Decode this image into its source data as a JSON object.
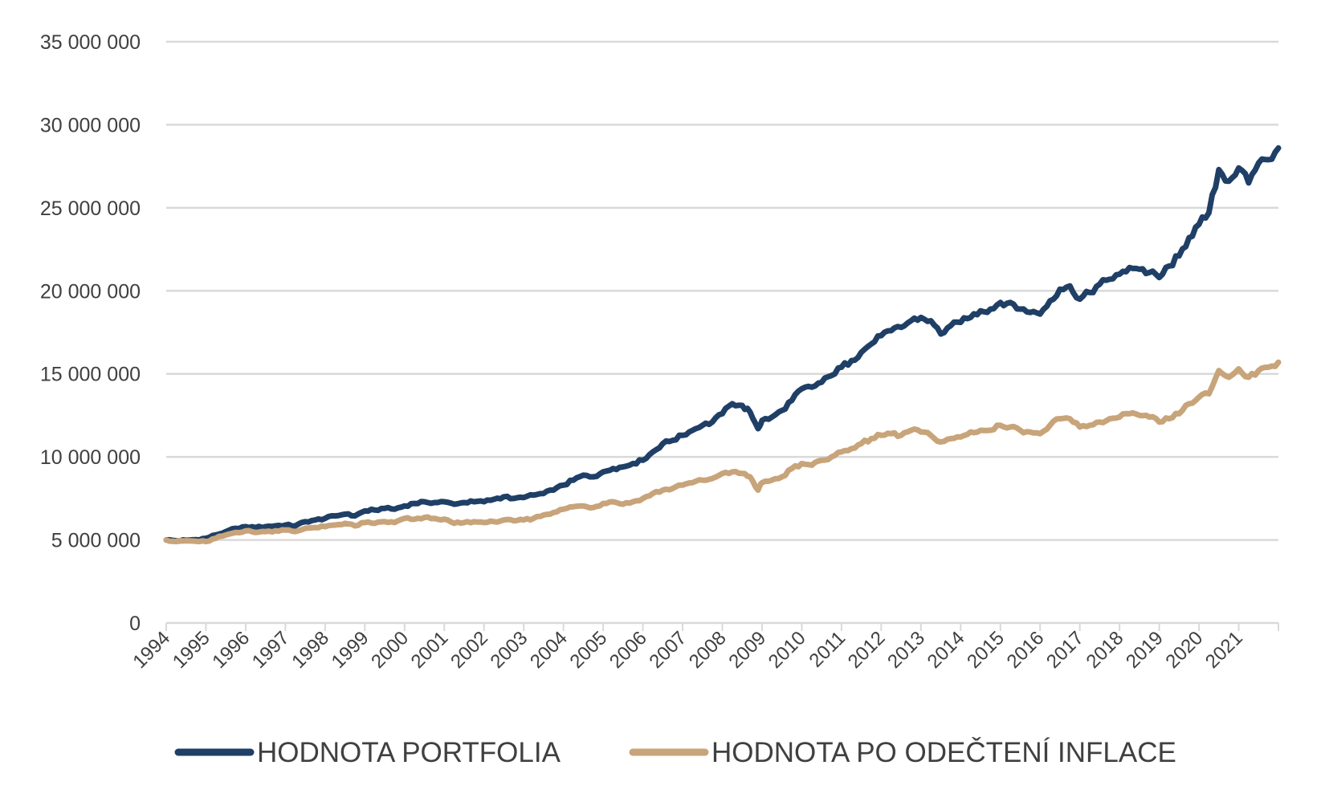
{
  "chart_data": {
    "type": "line",
    "title": "",
    "xlabel": "",
    "ylabel": "",
    "ylim": [
      0,
      35000000
    ],
    "y_ticks": [
      0,
      5000000,
      10000000,
      15000000,
      20000000,
      25000000,
      30000000,
      35000000
    ],
    "y_tick_labels": [
      "0",
      "5 000 000",
      "10 000 000",
      "15 000 000",
      "20 000 000",
      "25 000 000",
      "30 000 000",
      "35 000 000"
    ],
    "xlim": [
      1994,
      2022
    ],
    "x_tick_labels": [
      "1994",
      "1995",
      "1996",
      "1997",
      "1998",
      "1999",
      "2000",
      "2001",
      "2002",
      "2003",
      "2004",
      "2005",
      "2006",
      "2007",
      "2008",
      "2009",
      "2010",
      "2011",
      "2012",
      "2013",
      "2014",
      "2015",
      "2016",
      "2017",
      "2018",
      "2019",
      "2020",
      "2021"
    ],
    "grid": true,
    "legend_position": "bottom",
    "series": [
      {
        "name": "HODNOTA PORTFOLIA",
        "color": "#1f3f66",
        "x": [
          1994.0,
          1994.25,
          1994.5,
          1994.75,
          1995.0,
          1995.25,
          1995.5,
          1995.75,
          1996.0,
          1996.25,
          1996.5,
          1996.75,
          1997.0,
          1997.25,
          1997.5,
          1997.75,
          1998.0,
          1998.25,
          1998.5,
          1998.75,
          1999.0,
          1999.25,
          1999.5,
          1999.75,
          2000.0,
          2000.25,
          2000.5,
          2000.75,
          2001.0,
          2001.25,
          2001.5,
          2001.75,
          2002.0,
          2002.25,
          2002.5,
          2002.75,
          2003.0,
          2003.25,
          2003.5,
          2003.75,
          2004.0,
          2004.25,
          2004.5,
          2004.75,
          2005.0,
          2005.25,
          2005.5,
          2005.75,
          2006.0,
          2006.25,
          2006.5,
          2006.75,
          2007.0,
          2007.25,
          2007.5,
          2007.75,
          2008.0,
          2008.25,
          2008.5,
          2008.7,
          2008.9,
          2009.0,
          2009.25,
          2009.5,
          2009.75,
          2010.0,
          2010.25,
          2010.5,
          2010.75,
          2011.0,
          2011.25,
          2011.5,
          2011.75,
          2012.0,
          2012.25,
          2012.5,
          2012.75,
          2013.0,
          2013.25,
          2013.5,
          2013.75,
          2014.0,
          2014.25,
          2014.5,
          2014.75,
          2015.0,
          2015.25,
          2015.5,
          2015.75,
          2016.0,
          2016.25,
          2016.5,
          2016.75,
          2017.0,
          2017.25,
          2017.5,
          2017.75,
          2018.0,
          2018.25,
          2018.5,
          2018.75,
          2019.0,
          2019.25,
          2019.5,
          2019.75,
          2020.0,
          2020.25,
          2020.5,
          2020.75,
          2021.0,
          2021.25,
          2021.5,
          2021.75,
          2022.0
        ],
        "values": [
          5000000,
          4950000,
          4980000,
          5020000,
          5100000,
          5300000,
          5500000,
          5700000,
          5800000,
          5750000,
          5800000,
          5850000,
          5900000,
          5850000,
          6100000,
          6200000,
          6300000,
          6450000,
          6550000,
          6450000,
          6750000,
          6800000,
          6900000,
          6850000,
          7050000,
          7200000,
          7300000,
          7250000,
          7300000,
          7150000,
          7250000,
          7300000,
          7300000,
          7450000,
          7600000,
          7500000,
          7550000,
          7700000,
          7800000,
          8000000,
          8300000,
          8600000,
          8900000,
          8800000,
          9100000,
          9300000,
          9400000,
          9600000,
          9800000,
          10300000,
          10800000,
          11000000,
          11300000,
          11600000,
          11900000,
          12100000,
          12600000,
          13200000,
          13100000,
          12700000,
          11700000,
          12200000,
          12400000,
          12800000,
          13400000,
          14100000,
          14200000,
          14500000,
          14900000,
          15400000,
          15800000,
          16300000,
          16800000,
          17300000,
          17600000,
          17800000,
          18200000,
          18400000,
          18200000,
          17400000,
          17900000,
          18100000,
          18400000,
          18800000,
          18900000,
          19300000,
          19300000,
          18900000,
          18700000,
          18600000,
          19400000,
          20100000,
          20300000,
          19500000,
          19900000,
          20400000,
          20700000,
          21000000,
          21400000,
          21300000,
          21100000,
          20800000,
          21500000,
          22100000,
          23200000,
          24000000,
          24700000,
          27300000,
          26600000,
          27400000,
          26500000,
          27700000,
          27900000,
          28600000
        ]
      },
      {
        "name": "HODNOTA PO ODEČTENÍ INFLACE",
        "color": "#c8a47a",
        "x": [
          1994.0,
          1994.25,
          1994.5,
          1994.75,
          1995.0,
          1995.25,
          1995.5,
          1995.75,
          1996.0,
          1996.25,
          1996.5,
          1996.75,
          1997.0,
          1997.25,
          1997.5,
          1997.75,
          1998.0,
          1998.25,
          1998.5,
          1998.75,
          1999.0,
          1999.25,
          1999.5,
          1999.75,
          2000.0,
          2000.25,
          2000.5,
          2000.75,
          2001.0,
          2001.25,
          2001.5,
          2001.75,
          2002.0,
          2002.25,
          2002.5,
          2002.75,
          2003.0,
          2003.25,
          2003.5,
          2003.75,
          2004.0,
          2004.25,
          2004.5,
          2004.75,
          2005.0,
          2005.25,
          2005.5,
          2005.75,
          2006.0,
          2006.25,
          2006.5,
          2006.75,
          2007.0,
          2007.25,
          2007.5,
          2007.75,
          2008.0,
          2008.25,
          2008.5,
          2008.7,
          2008.9,
          2009.0,
          2009.25,
          2009.5,
          2009.75,
          2010.0,
          2010.25,
          2010.5,
          2010.75,
          2011.0,
          2011.25,
          2011.5,
          2011.75,
          2012.0,
          2012.25,
          2012.5,
          2012.75,
          2013.0,
          2013.25,
          2013.5,
          2013.75,
          2014.0,
          2014.25,
          2014.5,
          2014.75,
          2015.0,
          2015.25,
          2015.5,
          2015.75,
          2016.0,
          2016.25,
          2016.5,
          2016.75,
          2017.0,
          2017.25,
          2017.5,
          2017.75,
          2018.0,
          2018.25,
          2018.5,
          2018.75,
          2019.0,
          2019.25,
          2019.5,
          2019.75,
          2020.0,
          2020.25,
          2020.5,
          2020.75,
          2021.0,
          2021.25,
          2021.5,
          2021.75,
          2022.0
        ],
        "values": [
          5000000,
          4900000,
          4950000,
          4920000,
          4900000,
          5100000,
          5300000,
          5450000,
          5550000,
          5450000,
          5500000,
          5550000,
          5600000,
          5500000,
          5700000,
          5750000,
          5800000,
          5900000,
          6000000,
          5850000,
          6050000,
          6000000,
          6100000,
          6050000,
          6300000,
          6250000,
          6350000,
          6300000,
          6250000,
          6000000,
          6050000,
          6100000,
          6050000,
          6100000,
          6200000,
          6150000,
          6200000,
          6300000,
          6500000,
          6650000,
          6850000,
          7000000,
          7050000,
          6950000,
          7200000,
          7300000,
          7150000,
          7300000,
          7500000,
          7800000,
          8000000,
          8100000,
          8300000,
          8450000,
          8600000,
          8700000,
          9000000,
          9100000,
          9000000,
          8800000,
          8000000,
          8450000,
          8600000,
          8800000,
          9300000,
          9600000,
          9500000,
          9800000,
          10000000,
          10300000,
          10500000,
          10800000,
          11100000,
          11300000,
          11400000,
          11300000,
          11600000,
          11500000,
          11300000,
          10900000,
          11100000,
          11200000,
          11500000,
          11600000,
          11600000,
          11900000,
          11800000,
          11600000,
          11500000,
          11400000,
          11900000,
          12300000,
          12300000,
          11800000,
          11900000,
          12100000,
          12300000,
          12400000,
          12600000,
          12500000,
          12400000,
          12100000,
          12300000,
          12600000,
          13200000,
          13600000,
          13800000,
          15200000,
          14800000,
          15300000,
          14800000,
          15200000,
          15400000,
          15700000
        ]
      }
    ]
  }
}
